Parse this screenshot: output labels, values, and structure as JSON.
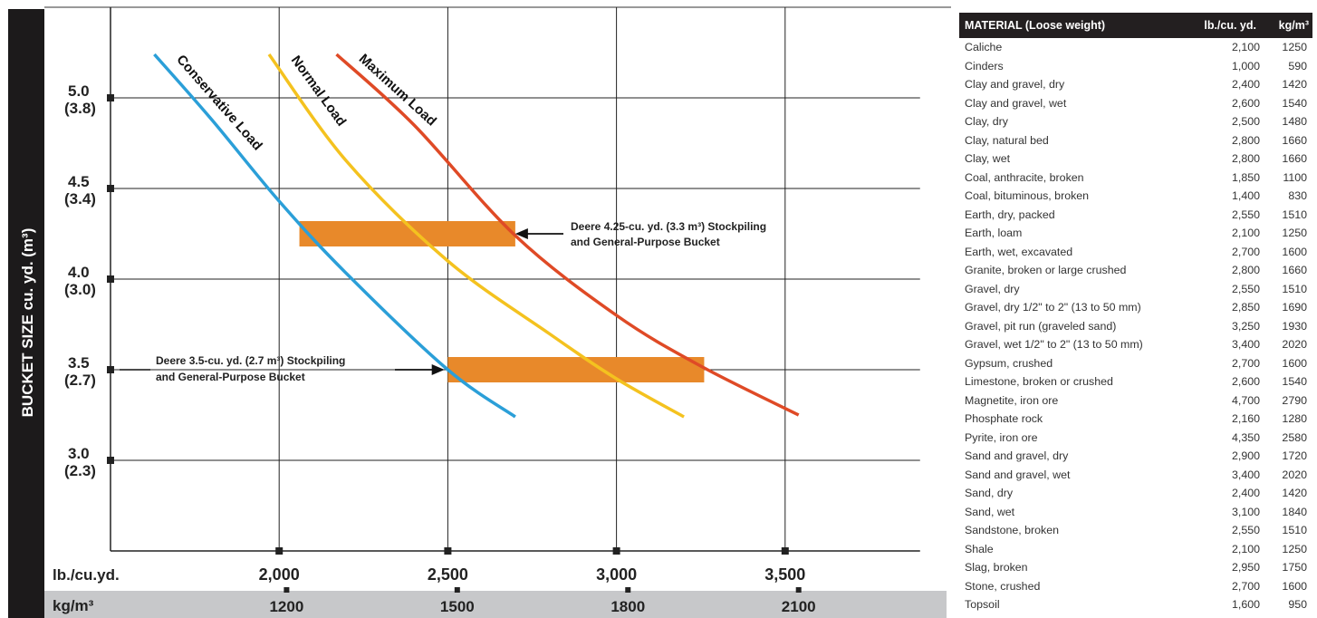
{
  "chart_data": {
    "type": "line",
    "ylabel": "BUCKET SIZE cu. yd. (m³)",
    "xlabel": "lb./cu.yd.",
    "x2label": "kg/m³",
    "xlim": [
      1500,
      3900
    ],
    "ylim": [
      2.5,
      5.5
    ],
    "x_ticks": [
      {
        "value": 2000,
        "label": "2,000"
      },
      {
        "value": 2500,
        "label": "2,500"
      },
      {
        "value": 3000,
        "label": "3,000"
      },
      {
        "value": 3500,
        "label": "3,500"
      }
    ],
    "x2_ticks": [
      {
        "value": 2022,
        "label": "1200"
      },
      {
        "value": 2528,
        "label": "1500"
      },
      {
        "value": 3034,
        "label": "1800"
      },
      {
        "value": 3540,
        "label": "2100"
      }
    ],
    "y_ticks": [
      {
        "value": 3.0,
        "label": "3.0",
        "sub": "(2.3)"
      },
      {
        "value": 3.5,
        "label": "3.5",
        "sub": "(2.7)"
      },
      {
        "value": 4.0,
        "label": "4.0",
        "sub": "(3.0)"
      },
      {
        "value": 4.5,
        "label": "4.5",
        "sub": "(3.4)"
      },
      {
        "value": 5.0,
        "label": "5.0",
        "sub": "(3.8)"
      }
    ],
    "grid": true,
    "series": [
      {
        "name": "Conservative Load",
        "color": "#2b9fd8",
        "x": [
          1630,
          1800,
          2000,
          2200,
          2500,
          2700
        ],
        "y": [
          5.24,
          4.88,
          4.43,
          4.03,
          3.5,
          3.24
        ]
      },
      {
        "name": "Normal Load",
        "color": "#f4c21f",
        "x": [
          1970,
          2200,
          2500,
          2800,
          3000,
          3200
        ],
        "y": [
          5.24,
          4.65,
          4.1,
          3.7,
          3.45,
          3.24
        ]
      },
      {
        "name": "Maximum Load",
        "color": "#df4a26",
        "x": [
          2170,
          2400,
          2700,
          3000,
          3250,
          3540
        ],
        "y": [
          5.24,
          4.85,
          4.24,
          3.8,
          3.52,
          3.25
        ]
      }
    ],
    "bands": [
      {
        "x": [
          2060,
          2700
        ],
        "y": 4.25,
        "color": "#e8892a"
      },
      {
        "x": [
          2500,
          3260
        ],
        "y": 3.5,
        "color": "#e8892a"
      }
    ],
    "annotations": [
      {
        "text": [
          "Deere 4.25-cu. yd. (3.3 m³) Stockpiling",
          "and General-Purpose Bucket"
        ],
        "arrow_to": [
          2700,
          4.25
        ]
      },
      {
        "text": [
          "Deere 3.5-cu. yd. (2.7 m³) Stockpiling",
          "and General-Purpose Bucket"
        ],
        "arrow_to": [
          2490,
          3.5
        ]
      }
    ]
  },
  "table": {
    "headers": [
      "MATERIAL (Loose weight)",
      "lb./cu. yd.",
      "kg/m³"
    ],
    "rows": [
      [
        "Caliche",
        "2,100",
        "1250"
      ],
      [
        "Cinders",
        "1,000",
        "590"
      ],
      [
        "Clay and gravel, dry",
        "2,400",
        "1420"
      ],
      [
        "Clay and gravel, wet",
        "2,600",
        "1540"
      ],
      [
        "Clay, dry",
        "2,500",
        "1480"
      ],
      [
        "Clay, natural bed",
        "2,800",
        "1660"
      ],
      [
        "Clay, wet",
        "2,800",
        "1660"
      ],
      [
        "Coal, anthracite, broken",
        "1,850",
        "1100"
      ],
      [
        "Coal, bituminous, broken",
        "1,400",
        "830"
      ],
      [
        "Earth, dry, packed",
        "2,550",
        "1510"
      ],
      [
        "Earth, loam",
        "2,100",
        "1250"
      ],
      [
        "Earth, wet, excavated",
        "2,700",
        "1600"
      ],
      [
        "Granite, broken or large crushed",
        "2,800",
        "1660"
      ],
      [
        "Gravel, dry",
        "2,550",
        "1510"
      ],
      [
        "Gravel, dry 1/2\" to 2\" (13 to 50 mm)",
        "2,850",
        "1690"
      ],
      [
        "Gravel, pit run (graveled sand)",
        "3,250",
        "1930"
      ],
      [
        "Gravel, wet 1/2\" to 2\" (13 to 50 mm)",
        "3,400",
        "2020"
      ],
      [
        "Gypsum, crushed",
        "2,700",
        "1600"
      ],
      [
        "Limestone, broken or crushed",
        "2,600",
        "1540"
      ],
      [
        "Magnetite, iron ore",
        "4,700",
        "2790"
      ],
      [
        "Phosphate rock",
        "2,160",
        "1280"
      ],
      [
        "Pyrite, iron ore",
        "4,350",
        "2580"
      ],
      [
        "Sand and gravel, dry",
        "2,900",
        "1720"
      ],
      [
        "Sand and gravel, wet",
        "3,400",
        "2020"
      ],
      [
        "Sand, dry",
        "2,400",
        "1420"
      ],
      [
        "Sand, wet",
        "3,100",
        "1840"
      ],
      [
        "Sandstone, broken",
        "2,550",
        "1510"
      ],
      [
        "Shale",
        "2,100",
        "1250"
      ],
      [
        "Slag, broken",
        "2,950",
        "1750"
      ],
      [
        "Stone, crushed",
        "2,700",
        "1600"
      ],
      [
        "Topsoil",
        "1,600",
        "950"
      ]
    ]
  }
}
